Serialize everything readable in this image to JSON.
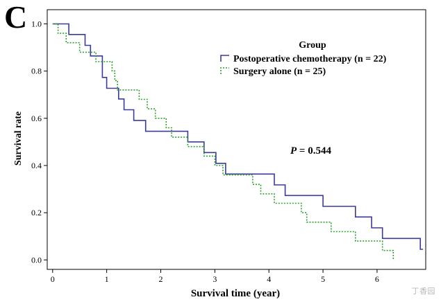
{
  "panel_label": "C",
  "watermark": "丁香园",
  "legend": {
    "title": "Group",
    "entries": [
      "Postoperative chemotherapy (n = 22)",
      "Surgery alone (n = 25)"
    ]
  },
  "annotation": {
    "p_symbol": "P",
    "p_text": " = 0.544"
  },
  "colors": {
    "chemotherapy": "#3a3a9a",
    "surgery_alone": "#2ca02c",
    "axis": "#000000",
    "frame": "#000000"
  },
  "chart_data": {
    "type": "line",
    "subtype": "kaplan-meier-step",
    "title": "",
    "xlabel": "Survival time (year)",
    "ylabel": "Survival rate",
    "xlim": [
      -0.1,
      6.9
    ],
    "ylim": [
      -0.04,
      1.06
    ],
    "xticks": [
      0,
      1,
      2,
      3,
      4,
      5,
      6
    ],
    "yticks": [
      0.0,
      0.2,
      0.4,
      0.6,
      0.8,
      1.0
    ],
    "ytick_labels": [
      "0.0",
      "0.2",
      "0.4",
      "0.6",
      "0.8",
      "1.0"
    ],
    "grid": false,
    "legend_position": "top-right",
    "series": [
      {
        "name": "Postoperative chemotherapy (n = 22)",
        "style": "solid",
        "steps": [
          [
            0.0,
            1.0
          ],
          [
            0.3,
            0.955
          ],
          [
            0.6,
            0.909
          ],
          [
            0.7,
            0.864
          ],
          [
            0.92,
            0.773
          ],
          [
            1.0,
            0.727
          ],
          [
            1.22,
            0.682
          ],
          [
            1.32,
            0.636
          ],
          [
            1.5,
            0.591
          ],
          [
            1.72,
            0.545
          ],
          [
            2.5,
            0.5
          ],
          [
            2.8,
            0.455
          ],
          [
            3.02,
            0.409
          ],
          [
            3.2,
            0.364
          ],
          [
            4.1,
            0.318
          ],
          [
            4.3,
            0.273
          ],
          [
            5.0,
            0.227
          ],
          [
            5.6,
            0.182
          ],
          [
            5.9,
            0.136
          ],
          [
            6.1,
            0.091
          ],
          [
            6.8,
            0.045
          ]
        ],
        "end_x": 6.85
      },
      {
        "name": "Surgery alone (n = 25)",
        "style": "dotted",
        "steps": [
          [
            0.0,
            1.0
          ],
          [
            0.1,
            0.96
          ],
          [
            0.25,
            0.92
          ],
          [
            0.5,
            0.88
          ],
          [
            0.8,
            0.84
          ],
          [
            1.1,
            0.8
          ],
          [
            1.15,
            0.76
          ],
          [
            1.2,
            0.72
          ],
          [
            1.6,
            0.68
          ],
          [
            1.75,
            0.64
          ],
          [
            1.9,
            0.6
          ],
          [
            2.1,
            0.56
          ],
          [
            2.2,
            0.52
          ],
          [
            2.5,
            0.48
          ],
          [
            2.8,
            0.44
          ],
          [
            3.0,
            0.4
          ],
          [
            3.15,
            0.36
          ],
          [
            3.7,
            0.32
          ],
          [
            3.85,
            0.28
          ],
          [
            4.1,
            0.24
          ],
          [
            4.6,
            0.2
          ],
          [
            4.7,
            0.16
          ],
          [
            5.15,
            0.12
          ],
          [
            5.6,
            0.08
          ],
          [
            6.1,
            0.04
          ],
          [
            6.3,
            0.0
          ]
        ],
        "end_x": 6.3
      }
    ]
  }
}
